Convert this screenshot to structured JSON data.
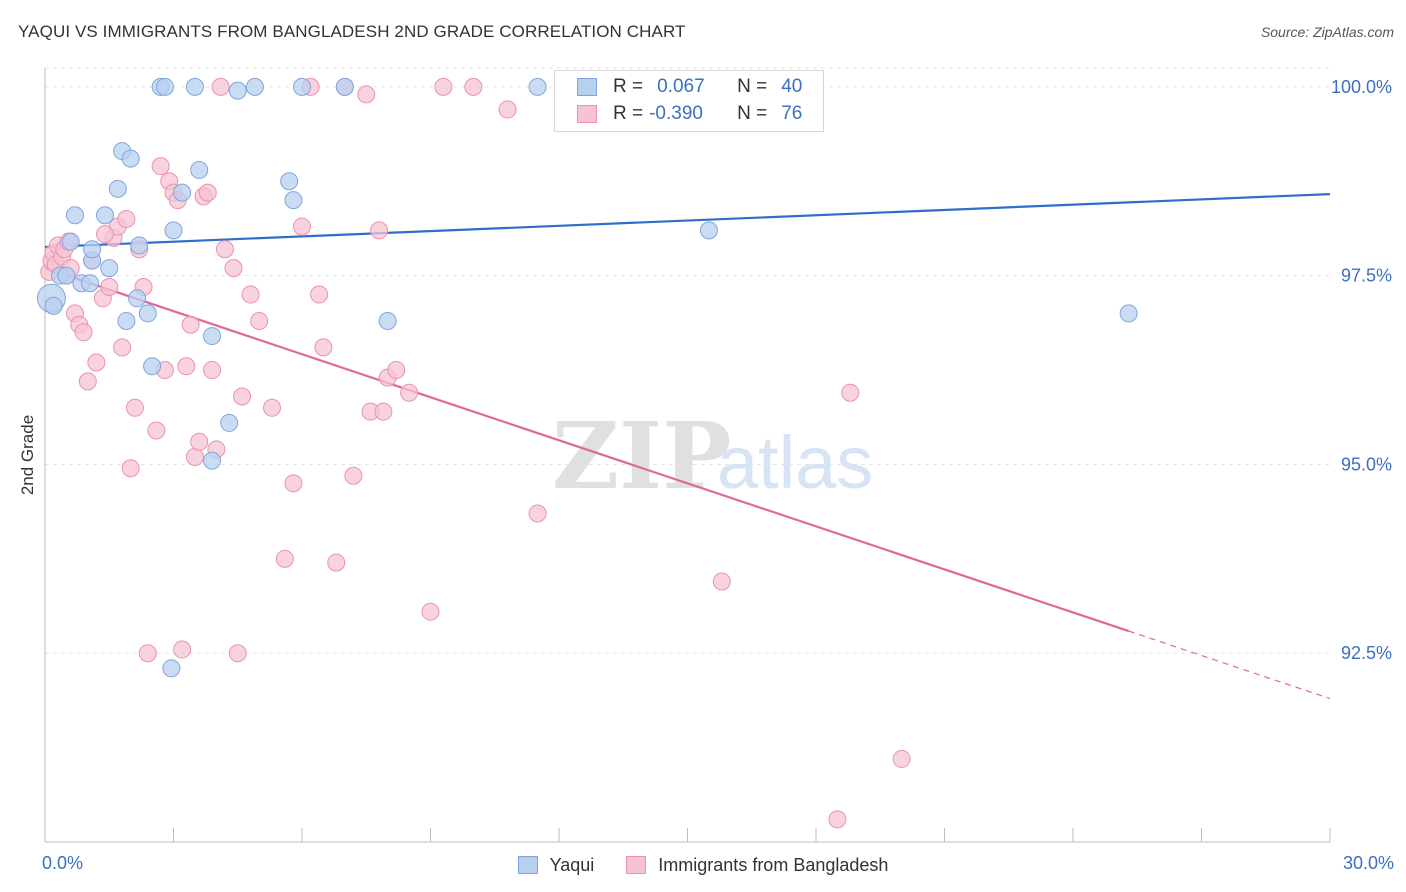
{
  "title": "YAQUI VS IMMIGRANTS FROM BANGLADESH 2ND GRADE CORRELATION CHART",
  "source": "Source: ZipAtlas.com",
  "watermark": {
    "zip": "ZIP",
    "atlas": "atlas"
  },
  "stats_legend": {
    "rows": [
      {
        "r_label": "R =",
        "r_value": "0.067",
        "n_label": "N =",
        "n_value": "40"
      },
      {
        "r_label": "R =",
        "r_value": "-0.390",
        "n_label": "N =",
        "n_value": "76"
      }
    ]
  },
  "bottom_legend": {
    "series1": "Yaqui",
    "series2": "Immigrants from Bangladesh"
  },
  "colors": {
    "blue_fill": "#b8d0f0",
    "blue_stroke": "#7fa6dc",
    "blue_line": "#2f6fc9",
    "pink_fill": "#f7c3d4",
    "pink_stroke": "#ea93b0",
    "pink_line": "#e0679a",
    "tick_label": "#3a6fc4",
    "grid": "#e3e3e3"
  },
  "chart_data": {
    "type": "scatter",
    "title": "YAQUI VS IMMIGRANTS FROM BANGLADESH 2ND GRADE CORRELATION CHART",
    "xlabel": "",
    "ylabel": "2nd Grade",
    "xlim": [
      0,
      30
    ],
    "ylim": [
      90.0,
      100.25
    ],
    "x_tick_labels": [
      {
        "value": 0,
        "label": "0.0%"
      },
      {
        "value": 30,
        "label": "30.0%"
      }
    ],
    "y_tick_labels": [
      {
        "value": 100.0,
        "label": "100.0%"
      },
      {
        "value": 97.5,
        "label": "97.5%"
      },
      {
        "value": 95.0,
        "label": "95.0%"
      },
      {
        "value": 92.5,
        "label": "92.5%"
      }
    ],
    "series": [
      {
        "name": "Yaqui",
        "color": "#b8d0f0",
        "trend": {
          "x": [
            0,
            30
          ],
          "y": [
            97.88,
            98.58
          ],
          "dashed_from": null
        },
        "points": [
          {
            "x": 0.15,
            "y": 97.2,
            "big": true
          },
          {
            "x": 0.2,
            "y": 97.1
          },
          {
            "x": 0.35,
            "y": 97.5
          },
          {
            "x": 0.5,
            "y": 97.5
          },
          {
            "x": 0.6,
            "y": 97.95
          },
          {
            "x": 0.7,
            "y": 98.3
          },
          {
            "x": 0.85,
            "y": 97.4
          },
          {
            "x": 1.05,
            "y": 97.4
          },
          {
            "x": 1.1,
            "y": 97.7
          },
          {
            "x": 1.1,
            "y": 97.85
          },
          {
            "x": 1.4,
            "y": 98.3
          },
          {
            "x": 1.5,
            "y": 97.6
          },
          {
            "x": 1.7,
            "y": 98.65
          },
          {
            "x": 1.8,
            "y": 99.15
          },
          {
            "x": 1.9,
            "y": 96.9
          },
          {
            "x": 2.0,
            "y": 99.05
          },
          {
            "x": 2.15,
            "y": 97.2
          },
          {
            "x": 2.2,
            "y": 97.9
          },
          {
            "x": 2.4,
            "y": 97.0
          },
          {
            "x": 2.5,
            "y": 96.3
          },
          {
            "x": 2.7,
            "y": 100.0
          },
          {
            "x": 2.8,
            "y": 100.0
          },
          {
            "x": 3.0,
            "y": 98.1
          },
          {
            "x": 3.2,
            "y": 98.6
          },
          {
            "x": 3.5,
            "y": 100.0
          },
          {
            "x": 3.6,
            "y": 98.9
          },
          {
            "x": 3.9,
            "y": 95.05
          },
          {
            "x": 3.9,
            "y": 96.7
          },
          {
            "x": 4.3,
            "y": 95.55
          },
          {
            "x": 4.5,
            "y": 99.95
          },
          {
            "x": 4.9,
            "y": 100.0
          },
          {
            "x": 5.7,
            "y": 98.75
          },
          {
            "x": 5.8,
            "y": 98.5
          },
          {
            "x": 6.0,
            "y": 100.0
          },
          {
            "x": 7.0,
            "y": 100.0
          },
          {
            "x": 8.0,
            "y": 96.9
          },
          {
            "x": 11.5,
            "y": 100.0
          },
          {
            "x": 15.5,
            "y": 98.1
          },
          {
            "x": 25.3,
            "y": 97.0
          },
          {
            "x": 2.95,
            "y": 92.3
          }
        ]
      },
      {
        "name": "Immigrants from Bangladesh",
        "color": "#f7c3d4",
        "trend": {
          "x": [
            0,
            30
          ],
          "y": [
            97.6,
            91.9
          ],
          "dashed_from": 25.3
        },
        "points": [
          {
            "x": 0.1,
            "y": 97.55
          },
          {
            "x": 0.15,
            "y": 97.7
          },
          {
            "x": 0.2,
            "y": 97.8
          },
          {
            "x": 0.25,
            "y": 97.65
          },
          {
            "x": 0.3,
            "y": 97.9
          },
          {
            "x": 0.4,
            "y": 97.75
          },
          {
            "x": 0.45,
            "y": 97.85
          },
          {
            "x": 0.5,
            "y": 97.5
          },
          {
            "x": 0.6,
            "y": 97.6
          },
          {
            "x": 0.7,
            "y": 97.0
          },
          {
            "x": 0.8,
            "y": 96.85
          },
          {
            "x": 0.9,
            "y": 96.75
          },
          {
            "x": 1.0,
            "y": 96.1
          },
          {
            "x": 1.1,
            "y": 97.7
          },
          {
            "x": 1.2,
            "y": 96.35
          },
          {
            "x": 1.35,
            "y": 97.2
          },
          {
            "x": 1.5,
            "y": 97.35
          },
          {
            "x": 1.6,
            "y": 98.0
          },
          {
            "x": 1.7,
            "y": 98.15
          },
          {
            "x": 1.8,
            "y": 96.55
          },
          {
            "x": 1.9,
            "y": 98.25
          },
          {
            "x": 2.0,
            "y": 94.95
          },
          {
            "x": 2.1,
            "y": 95.75
          },
          {
            "x": 2.2,
            "y": 97.85
          },
          {
            "x": 2.3,
            "y": 97.35
          },
          {
            "x": 2.4,
            "y": 92.5
          },
          {
            "x": 2.6,
            "y": 95.45
          },
          {
            "x": 2.7,
            "y": 98.95
          },
          {
            "x": 2.8,
            "y": 96.25
          },
          {
            "x": 2.9,
            "y": 98.75
          },
          {
            "x": 3.0,
            "y": 98.6
          },
          {
            "x": 3.1,
            "y": 98.5
          },
          {
            "x": 3.2,
            "y": 92.55
          },
          {
            "x": 3.3,
            "y": 96.3
          },
          {
            "x": 3.4,
            "y": 96.85
          },
          {
            "x": 3.5,
            "y": 95.1
          },
          {
            "x": 3.6,
            "y": 95.3
          },
          {
            "x": 3.7,
            "y": 98.55
          },
          {
            "x": 3.8,
            "y": 98.6
          },
          {
            "x": 3.9,
            "y": 96.25
          },
          {
            "x": 4.0,
            "y": 95.2
          },
          {
            "x": 4.2,
            "y": 97.85
          },
          {
            "x": 4.4,
            "y": 97.6
          },
          {
            "x": 4.5,
            "y": 92.5
          },
          {
            "x": 4.6,
            "y": 95.9
          },
          {
            "x": 4.8,
            "y": 97.25
          },
          {
            "x": 5.0,
            "y": 96.9
          },
          {
            "x": 5.3,
            "y": 95.75
          },
          {
            "x": 5.6,
            "y": 93.75
          },
          {
            "x": 5.8,
            "y": 94.75
          },
          {
            "x": 6.0,
            "y": 98.15
          },
          {
            "x": 6.2,
            "y": 100.0
          },
          {
            "x": 6.4,
            "y": 97.25
          },
          {
            "x": 6.5,
            "y": 96.55
          },
          {
            "x": 6.8,
            "y": 93.7
          },
          {
            "x": 7.0,
            "y": 100.0
          },
          {
            "x": 7.2,
            "y": 94.85
          },
          {
            "x": 7.5,
            "y": 99.9
          },
          {
            "x": 7.6,
            "y": 95.7
          },
          {
            "x": 7.8,
            "y": 98.1
          },
          {
            "x": 7.9,
            "y": 95.7
          },
          {
            "x": 8.0,
            "y": 96.15
          },
          {
            "x": 8.2,
            "y": 96.25
          },
          {
            "x": 8.5,
            "y": 95.95
          },
          {
            "x": 9.0,
            "y": 93.05
          },
          {
            "x": 9.3,
            "y": 100.0
          },
          {
            "x": 10.0,
            "y": 100.0
          },
          {
            "x": 10.8,
            "y": 99.7
          },
          {
            "x": 11.5,
            "y": 94.35
          },
          {
            "x": 15.8,
            "y": 93.45
          },
          {
            "x": 18.5,
            "y": 90.3
          },
          {
            "x": 18.8,
            "y": 95.95
          },
          {
            "x": 20.0,
            "y": 91.1
          },
          {
            "x": 1.4,
            "y": 98.05
          },
          {
            "x": 0.55,
            "y": 97.95
          },
          {
            "x": 4.1,
            "y": 100.0
          }
        ]
      }
    ]
  }
}
